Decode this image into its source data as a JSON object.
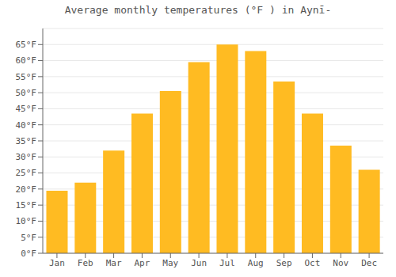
{
  "chart_data": {
    "type": "bar",
    "title": "Average monthly temperatures (°F ) in Aynī-",
    "categories": [
      "Jan",
      "Feb",
      "Mar",
      "Apr",
      "May",
      "Jun",
      "Jul",
      "Aug",
      "Sep",
      "Oct",
      "Nov",
      "Dec"
    ],
    "values": [
      19.5,
      22,
      32,
      43.5,
      50.5,
      59.5,
      65,
      63,
      53.5,
      43.5,
      33.5,
      26
    ],
    "color": "#FFBB22",
    "ylim": [
      0,
      70
    ],
    "yticks": [
      {
        "value": 0,
        "label": "0°F"
      },
      {
        "value": 5,
        "label": "5°F"
      },
      {
        "value": 10,
        "label": "10°F"
      },
      {
        "value": 15,
        "label": "15°F"
      },
      {
        "value": 20,
        "label": "20°F"
      },
      {
        "value": 25,
        "label": "25°F"
      },
      {
        "value": 30,
        "label": "30°F"
      },
      {
        "value": 35,
        "label": "35°F"
      },
      {
        "value": 40,
        "label": "40°F"
      },
      {
        "value": 45,
        "label": "45°F"
      },
      {
        "value": 50,
        "label": "50°F"
      },
      {
        "value": 55,
        "label": "55°F"
      },
      {
        "value": 60,
        "label": "60°F"
      },
      {
        "value": 65,
        "label": "65°F"
      }
    ],
    "grid": true
  }
}
